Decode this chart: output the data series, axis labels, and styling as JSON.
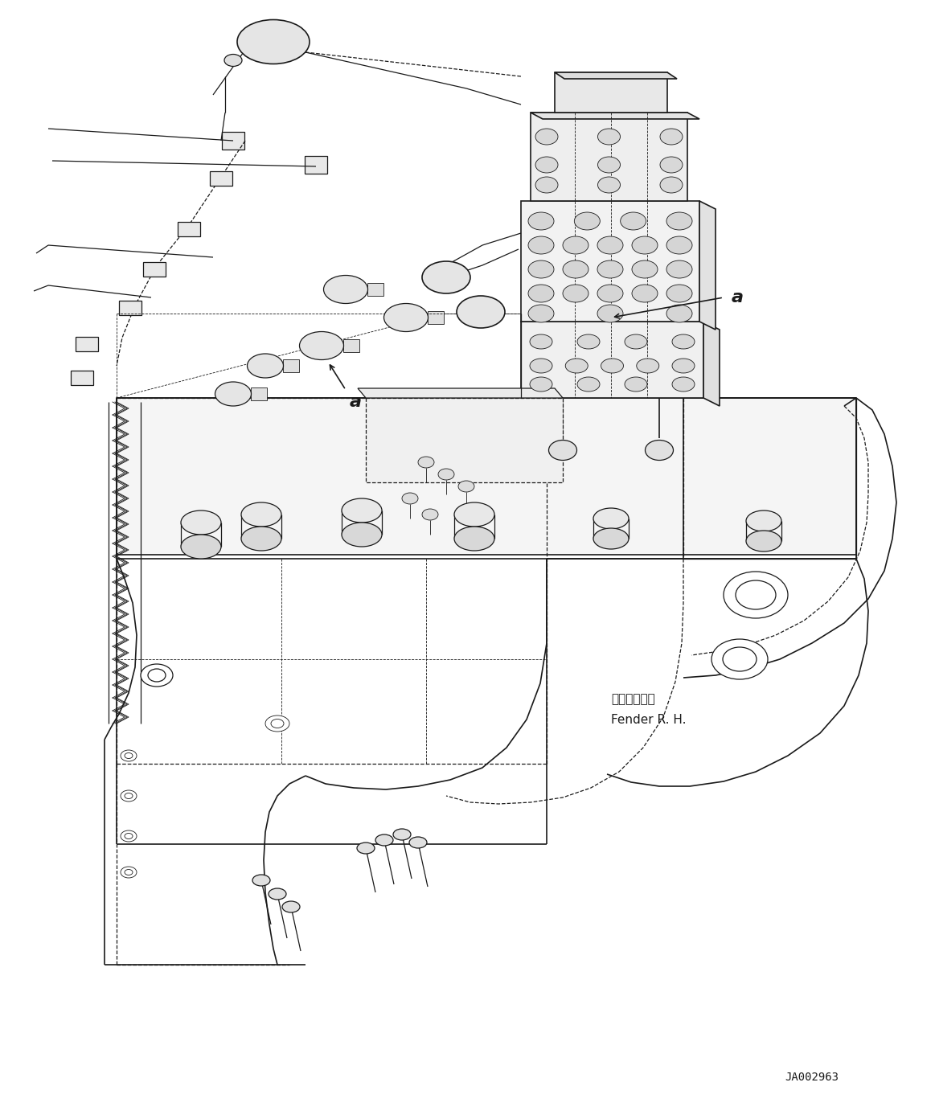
{
  "bg_color": "#ffffff",
  "line_color": "#1a1a1a",
  "fig_width": 11.63,
  "fig_height": 13.77,
  "dpi": 100,
  "fender_label_jp": "フェンダ　右",
  "fender_label_en": "Fender R. H.",
  "drawing_number": "JA002963",
  "label_a": "a"
}
